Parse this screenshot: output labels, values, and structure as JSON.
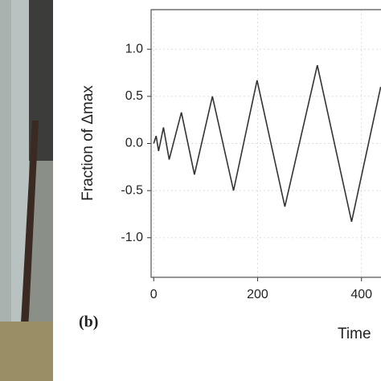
{
  "chart_data": {
    "type": "line",
    "panel_label": "(b)",
    "y_label": "Fraction of Δmax",
    "x_label": "Time",
    "x": [
      0,
      4.7,
      9.4,
      18.8,
      29.8,
      53.3,
      78.4,
      113,
      153.7,
      199,
      252.5,
      315,
      381,
      437
    ],
    "series": [
      {
        "color": "#333333",
        "values": [
          0,
          0.08,
          -0.08,
          0.17,
          -0.17,
          0.33,
          -0.33,
          0.5,
          -0.5,
          0.67,
          -0.67,
          0.83,
          -0.83,
          0.6
        ]
      }
    ],
    "xlim": [
      -5,
      437.6
    ],
    "xticks": [
      0,
      200,
      400
    ],
    "ylim": [
      -1.42,
      1.42
    ],
    "yticks": [
      {
        "value": 1,
        "label": "1.0"
      },
      0.5,
      {
        "value": 0,
        "label": "0.0"
      },
      -0.5,
      {
        "value": -1,
        "label": "-1.0"
      }
    ],
    "grid": true
  }
}
